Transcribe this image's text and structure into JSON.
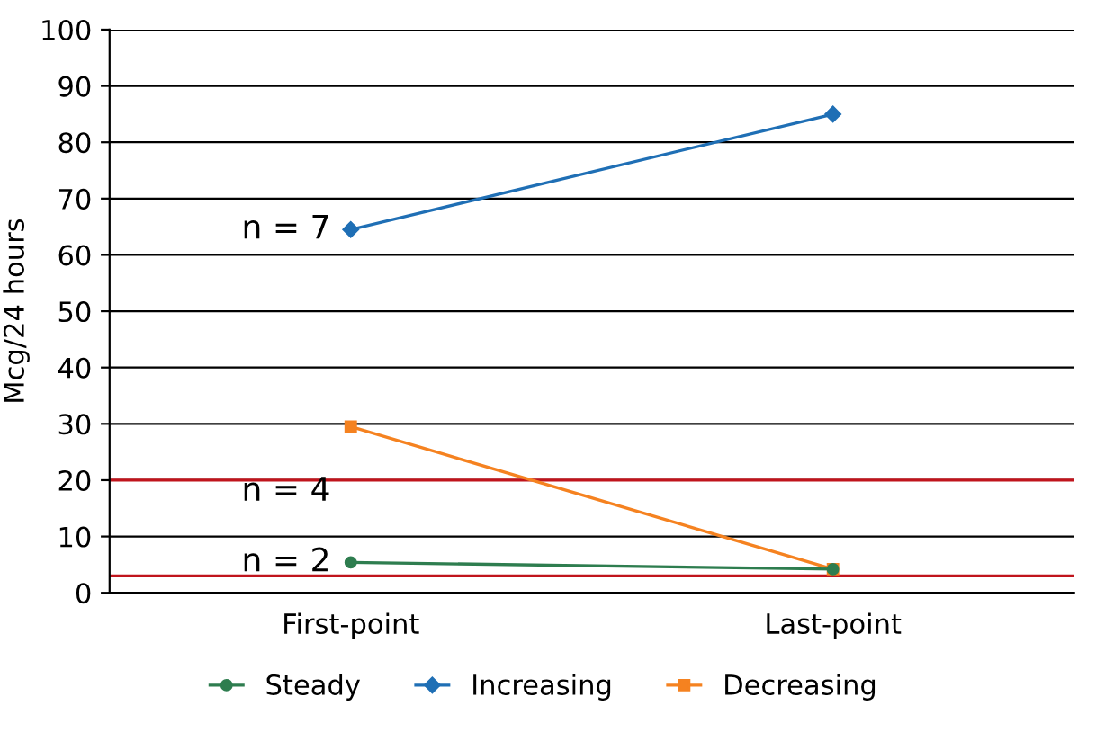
{
  "chart_data": {
    "type": "line",
    "ylabel": "Mcg/24 hours",
    "categories": [
      "First-point",
      "Last-point"
    ],
    "series": [
      {
        "name": "Steady",
        "color": "#2e7d4f",
        "values": [
          5.4,
          4.2
        ],
        "marker": "circle"
      },
      {
        "name": "Increasing",
        "color": "#1f6fb5",
        "values": [
          64.5,
          85
        ],
        "marker": "diamond"
      },
      {
        "name": "Decreasing",
        "color": "#f58220",
        "values": [
          29.5,
          4.2
        ],
        "marker": "square"
      }
    ],
    "ylim": [
      0,
      100
    ],
    "yticks": [
      0,
      10,
      20,
      30,
      40,
      50,
      60,
      70,
      80,
      90,
      100
    ],
    "grid": "y",
    "legend": "bottom",
    "ref_lines": [
      {
        "axis": "y",
        "value": 20,
        "color": "#c0141c"
      },
      {
        "axis": "y",
        "value": 3,
        "color": "#c0141c"
      }
    ],
    "annotations": [
      {
        "text": "n = 7",
        "x": "First-point",
        "y": 64.5
      },
      {
        "text": "n = 4",
        "x": "First-point",
        "y": 29.5
      },
      {
        "text": "n = 2",
        "x": "First-point",
        "y": 5.4
      }
    ]
  }
}
